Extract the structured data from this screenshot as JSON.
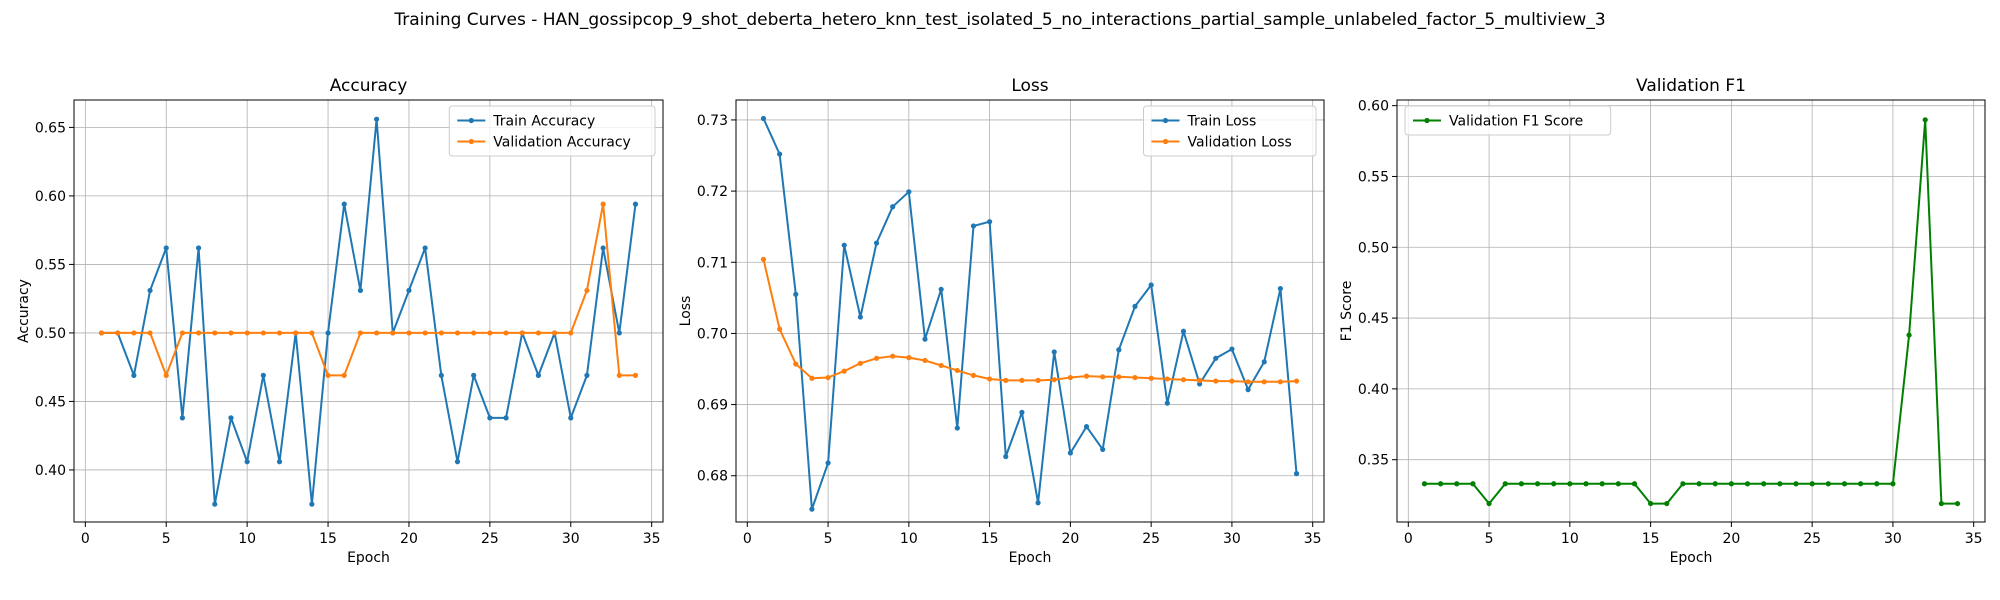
{
  "figure": {
    "title": "Training Curves - HAN_gossipcop_9_shot_deberta_hetero_knn_test_isolated_5_no_interactions_partial_sample_unlabeled_factor_5_multiview_3"
  },
  "chart_data": [
    {
      "type": "line",
      "title": "Accuracy",
      "xlabel": "Epoch",
      "ylabel": "Accuracy",
      "xlim": [
        -0.7,
        35.7
      ],
      "ylim": [
        0.362,
        0.67
      ],
      "xticks": [
        0,
        5,
        10,
        15,
        20,
        25,
        30,
        35
      ],
      "yticks": [
        0.4,
        0.45,
        0.5,
        0.55,
        0.6,
        0.65
      ],
      "ytick_labels": [
        "0.40",
        "0.45",
        "0.50",
        "0.55",
        "0.60",
        "0.65"
      ],
      "grid": true,
      "legend_position": "top-right",
      "x": [
        1,
        2,
        3,
        4,
        5,
        6,
        7,
        8,
        9,
        10,
        11,
        12,
        13,
        14,
        15,
        16,
        17,
        18,
        19,
        20,
        21,
        22,
        23,
        24,
        25,
        26,
        27,
        28,
        29,
        30,
        31,
        32,
        33,
        34
      ],
      "series": [
        {
          "name": "Train Accuracy",
          "color": "#1f77b4",
          "values": [
            0.5,
            0.5,
            0.469,
            0.531,
            0.562,
            0.438,
            0.562,
            0.375,
            0.438,
            0.406,
            0.469,
            0.406,
            0.5,
            0.375,
            0.5,
            0.594,
            0.531,
            0.656,
            0.5,
            0.531,
            0.562,
            0.469,
            0.406,
            0.469,
            0.438,
            0.438,
            0.5,
            0.469,
            0.5,
            0.438,
            0.469,
            0.562,
            0.5,
            0.594
          ]
        },
        {
          "name": "Validation Accuracy",
          "color": "#ff7f0e",
          "values": [
            0.5,
            0.5,
            0.5,
            0.5,
            0.469,
            0.5,
            0.5,
            0.5,
            0.5,
            0.5,
            0.5,
            0.5,
            0.5,
            0.5,
            0.469,
            0.469,
            0.5,
            0.5,
            0.5,
            0.5,
            0.5,
            0.5,
            0.5,
            0.5,
            0.5,
            0.5,
            0.5,
            0.5,
            0.5,
            0.5,
            0.531,
            0.594,
            0.469,
            0.469
          ]
        }
      ]
    },
    {
      "type": "line",
      "title": "Loss",
      "xlabel": "Epoch",
      "ylabel": "Loss",
      "xlim": [
        -0.7,
        35.7
      ],
      "ylim": [
        0.6735,
        0.7328
      ],
      "xticks": [
        0,
        5,
        10,
        15,
        20,
        25,
        30,
        35
      ],
      "yticks": [
        0.68,
        0.69,
        0.7,
        0.71,
        0.72,
        0.73
      ],
      "ytick_labels": [
        "0.68",
        "0.69",
        "0.70",
        "0.71",
        "0.72",
        "0.73"
      ],
      "grid": true,
      "legend_position": "top-right",
      "x": [
        1,
        2,
        3,
        4,
        5,
        6,
        7,
        8,
        9,
        10,
        11,
        12,
        13,
        14,
        15,
        16,
        17,
        18,
        19,
        20,
        21,
        22,
        23,
        24,
        25,
        26,
        27,
        28,
        29,
        30,
        31,
        32,
        33,
        34
      ],
      "series": [
        {
          "name": "Train Loss",
          "color": "#1f77b4",
          "values": [
            0.7302,
            0.7252,
            0.7055,
            0.6753,
            0.6818,
            0.7124,
            0.7023,
            0.7127,
            0.7178,
            0.7199,
            0.6992,
            0.7062,
            0.6867,
            0.7151,
            0.7157,
            0.6827,
            0.6889,
            0.6762,
            0.6974,
            0.6832,
            0.6869,
            0.6837,
            0.6977,
            0.7038,
            0.7068,
            0.6902,
            0.7003,
            0.6929,
            0.6965,
            0.6978,
            0.6921,
            0.696,
            0.7063,
            0.6803
          ]
        },
        {
          "name": "Validation Loss",
          "color": "#ff7f0e",
          "values": [
            0.7104,
            0.7006,
            0.6957,
            0.6937,
            0.6938,
            0.6947,
            0.6958,
            0.6965,
            0.6968,
            0.6966,
            0.6962,
            0.6955,
            0.6948,
            0.6941,
            0.6936,
            0.6934,
            0.6934,
            0.6934,
            0.6935,
            0.6938,
            0.694,
            0.6939,
            0.6939,
            0.6938,
            0.6937,
            0.6936,
            0.6935,
            0.6934,
            0.6933,
            0.6933,
            0.6932,
            0.6932,
            0.6932,
            0.6933
          ]
        }
      ]
    },
    {
      "type": "line",
      "title": "Validation F1",
      "xlabel": "Epoch",
      "ylabel": "F1 Score",
      "xlim": [
        -0.7,
        35.7
      ],
      "ylim": [
        0.306,
        0.604
      ],
      "xticks": [
        0,
        5,
        10,
        15,
        20,
        25,
        30,
        35
      ],
      "yticks": [
        0.35,
        0.4,
        0.45,
        0.5,
        0.55,
        0.6
      ],
      "ytick_labels": [
        "0.35",
        "0.40",
        "0.45",
        "0.50",
        "0.55",
        "0.60"
      ],
      "grid": true,
      "legend_position": "top-left",
      "x": [
        1,
        2,
        3,
        4,
        5,
        6,
        7,
        8,
        9,
        10,
        11,
        12,
        13,
        14,
        15,
        16,
        17,
        18,
        19,
        20,
        21,
        22,
        23,
        24,
        25,
        26,
        27,
        28,
        29,
        30,
        31,
        32,
        33,
        34
      ],
      "series": [
        {
          "name": "Validation F1 Score",
          "color": "#008000",
          "values": [
            0.333,
            0.333,
            0.333,
            0.333,
            0.319,
            0.333,
            0.333,
            0.333,
            0.333,
            0.333,
            0.333,
            0.333,
            0.333,
            0.333,
            0.319,
            0.319,
            0.333,
            0.333,
            0.333,
            0.333,
            0.333,
            0.333,
            0.333,
            0.333,
            0.333,
            0.333,
            0.333,
            0.333,
            0.333,
            0.333,
            0.438,
            0.59,
            0.319,
            0.319
          ]
        }
      ]
    }
  ]
}
